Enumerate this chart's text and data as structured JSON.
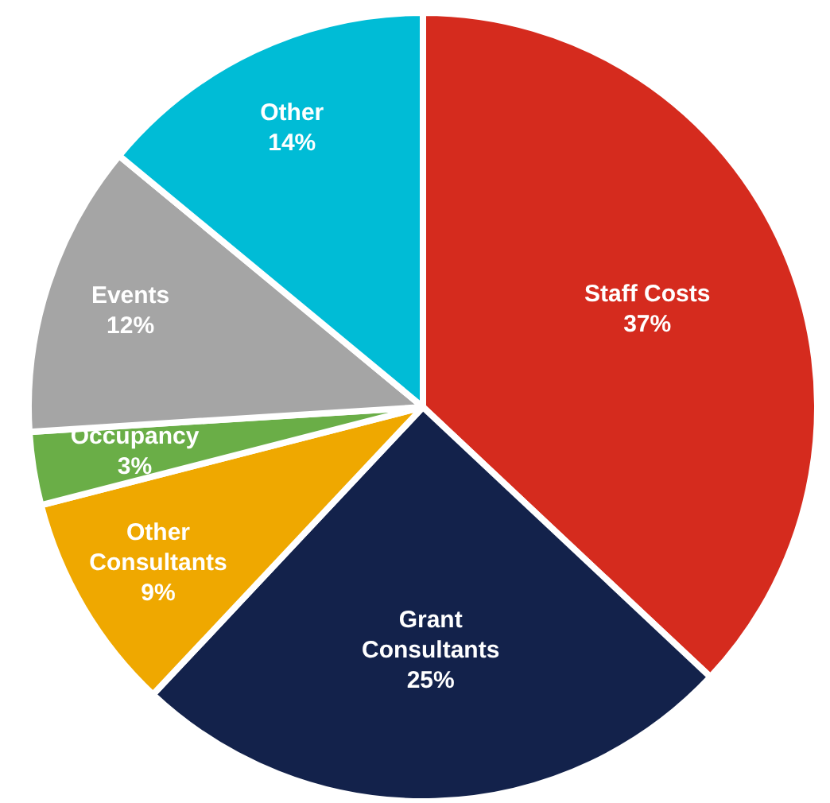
{
  "chart_data": {
    "type": "pie",
    "categories": [
      "Staff Costs",
      "Grant Consultants",
      "Other Consultants",
      "Occupancy",
      "Events",
      "Other"
    ],
    "values": [
      37,
      25,
      9,
      3,
      12,
      14
    ],
    "value_labels": [
      "37%",
      "25%",
      "9%",
      "3%",
      "12%",
      "14%"
    ],
    "colors": [
      "#d52b1e",
      "#13224b",
      "#efa800",
      "#6aae47",
      "#a5a5a5",
      "#00bcd6"
    ]
  }
}
